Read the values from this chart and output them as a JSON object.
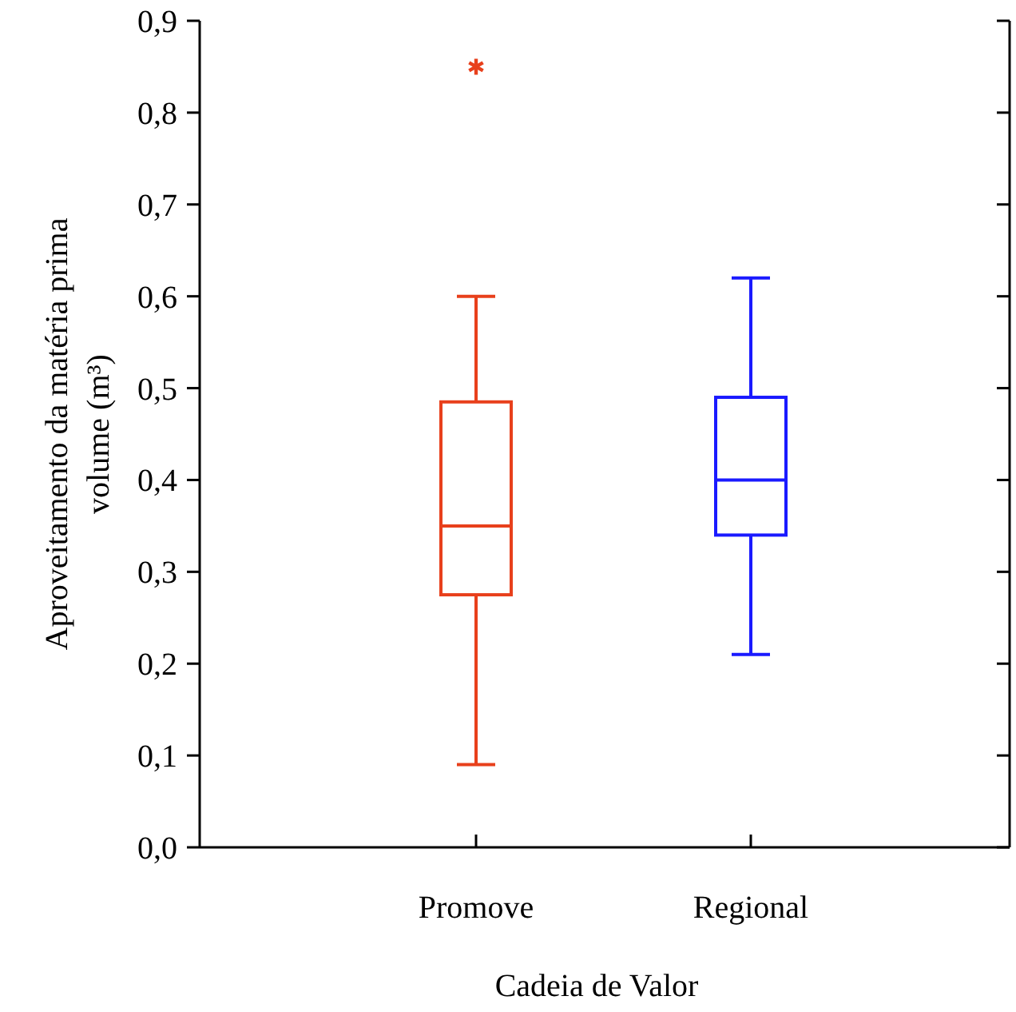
{
  "chart_data": {
    "type": "box",
    "xlabel": "Cadeia de Valor",
    "ylabel": "Aproveitamento da  matéria prima\nvolume (m³)",
    "categories": [
      "Promove",
      "Regional"
    ],
    "series": [
      {
        "color": "#e8401c",
        "boxes": [
          {
            "low": 0.09,
            "q1": 0.275,
            "median": 0.35,
            "q3": 0.485,
            "high": 0.6,
            "outliers": [
              0.85
            ]
          },
          null
        ]
      },
      {
        "color": "#1a1aff",
        "boxes": [
          null,
          {
            "low": 0.21,
            "q1": 0.34,
            "median": 0.4,
            "q3": 0.49,
            "high": 0.62
          }
        ]
      }
    ],
    "ylim": [
      0,
      0.9
    ],
    "yticks": [
      {
        "value": 0,
        "label": "0,0"
      },
      {
        "value": 0.1,
        "label": "0,1"
      },
      {
        "value": 0.2,
        "label": "0,2"
      },
      {
        "value": 0.3,
        "label": "0,3"
      },
      {
        "value": 0.4,
        "label": "0,4"
      },
      {
        "value": 0.5,
        "label": "0,5"
      },
      {
        "value": 0.6,
        "label": "0,6"
      },
      {
        "value": 0.7,
        "label": "0,7"
      },
      {
        "value": 0.8,
        "label": "0,8"
      },
      {
        "value": 0.9,
        "label": "0,9"
      }
    ],
    "marker": "cross",
    "grid": false
  }
}
